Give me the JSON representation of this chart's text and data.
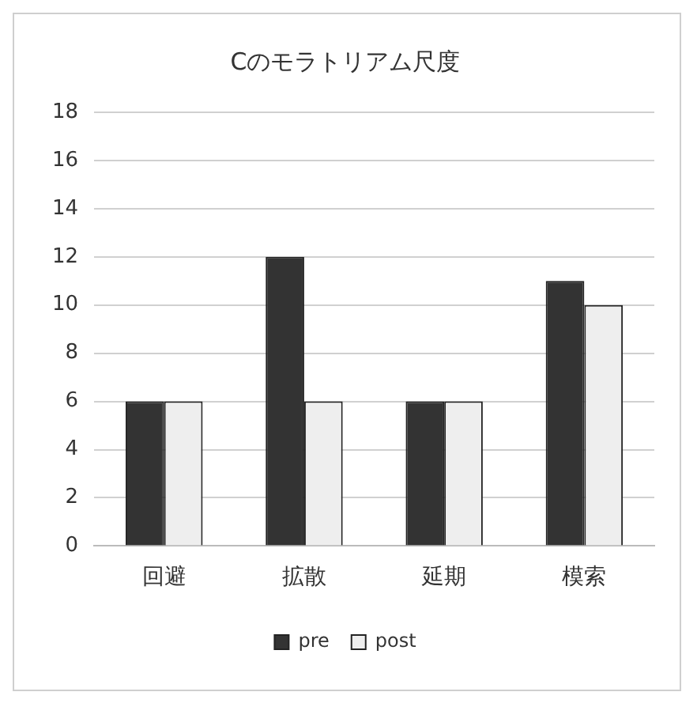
{
  "chart_data": {
    "type": "bar",
    "title": "Cのモラトリアム尺度",
    "categories": [
      "回避",
      "拡散",
      "延期",
      "模索"
    ],
    "series": [
      {
        "name": "pre",
        "color": "#333333",
        "values": [
          6,
          12,
          6,
          11
        ]
      },
      {
        "name": "post",
        "color": "#eeeeee",
        "values": [
          6,
          6,
          6,
          10
        ]
      }
    ],
    "ylim": [
      0,
      18
    ],
    "yticks": [
      0,
      2,
      4,
      6,
      8,
      10,
      12,
      14,
      16,
      18
    ],
    "grid": "y",
    "legend": "bottom"
  }
}
